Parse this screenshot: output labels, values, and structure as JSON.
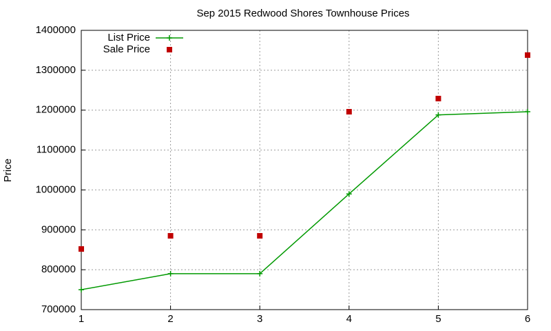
{
  "chart_data": {
    "type": "line",
    "title": "Sep 2015 Redwood Shores Townhouse Prices",
    "y_label": "Price",
    "x": [
      1,
      2,
      3,
      4,
      5,
      6
    ],
    "series": [
      {
        "name": "List Price",
        "color": "#009900",
        "mode": "lines+markers",
        "values": [
          750000,
          790000,
          790000,
          990000,
          1188000,
          1196000
        ]
      },
      {
        "name": "Sale Price",
        "color": "#c00000",
        "mode": "markers",
        "values": [
          852000,
          885000,
          885000,
          1196000,
          1229000,
          1338000
        ]
      }
    ],
    "xlim": [
      1,
      6
    ],
    "xticks": [
      1,
      2,
      3,
      4,
      5,
      6
    ],
    "ylim": [
      700000,
      1400000
    ],
    "yticks": [
      700000,
      800000,
      900000,
      1000000,
      1100000,
      1200000,
      1300000,
      1400000
    ],
    "grid": true,
    "legend": "top-left"
  }
}
